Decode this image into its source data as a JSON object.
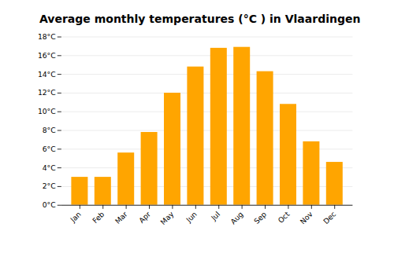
{
  "chart_data": {
    "type": "bar",
    "title": "Average monthly temperatures (°C ) in Vlaardingen",
    "categories": [
      "Jan",
      "Feb",
      "Mar",
      "Apr",
      "May",
      "Jun",
      "Jul",
      "Aug",
      "Sep",
      "Oct",
      "Nov",
      "Dec"
    ],
    "values": [
      3.0,
      3.0,
      5.6,
      7.8,
      12.0,
      14.8,
      16.8,
      16.9,
      14.3,
      10.8,
      6.8,
      4.6
    ],
    "color": "#FFA500",
    "ylim": [
      0,
      18
    ],
    "yticks": [
      {
        "value": 0,
        "label": "0°C"
      },
      {
        "value": 2,
        "label": "2°C"
      },
      {
        "value": 4,
        "label": "4°C"
      },
      {
        "value": 6,
        "label": "6°C"
      },
      {
        "value": 8,
        "label": "8°C"
      },
      {
        "value": 10,
        "label": "10°C"
      },
      {
        "value": 12,
        "label": "12°C"
      },
      {
        "value": 14,
        "label": "14°C"
      },
      {
        "value": 16,
        "label": "16°C"
      },
      {
        "value": 18,
        "label": "18°C"
      }
    ],
    "grid": true
  }
}
